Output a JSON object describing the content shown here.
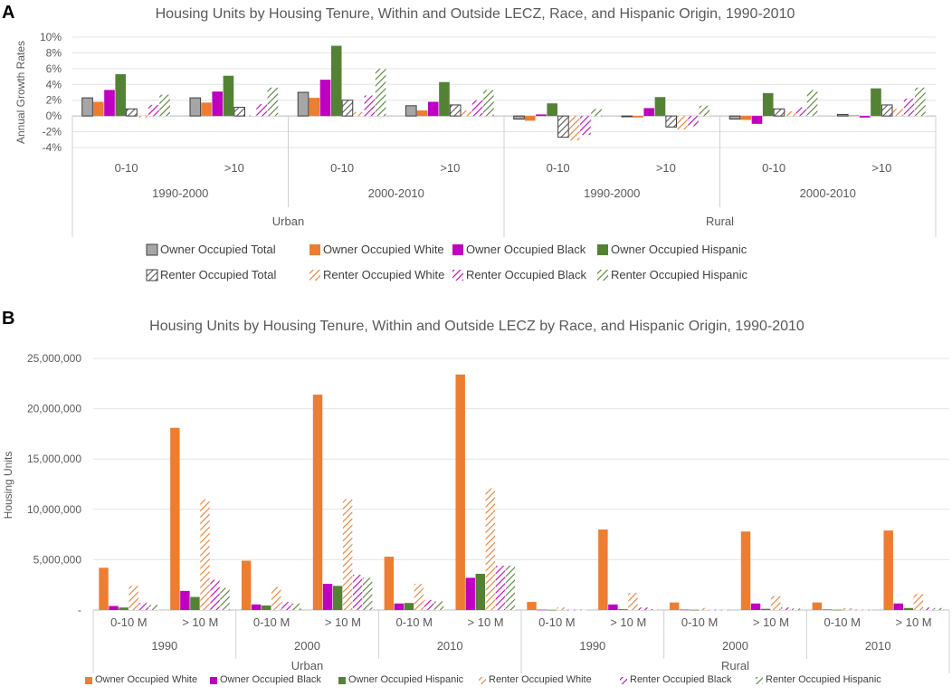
{
  "panels": [
    {
      "letter": "A"
    },
    {
      "letter": "B"
    }
  ],
  "colors": {
    "owner_total": "#a6a6a6",
    "owner_white": "#ed7d31",
    "owner_black": "#c000c0",
    "owner_hispanic": "#548235",
    "renter_total": "#595959"
  },
  "chart_data": [
    {
      "type": "bar",
      "title": "Housing Units by Housing Tenure, Within and Outside LECZ, Race, and Hispanic Origin, 1990-2010",
      "ylabel": "Annual Growth Rates",
      "xlabel": "",
      "ylim": [
        -4,
        10
      ],
      "yticks": [
        "10%",
        "8%",
        "6%",
        "4%",
        "2%",
        "0%",
        "-2%",
        "-4%"
      ],
      "ytick_values": [
        10,
        8,
        6,
        4,
        2,
        0,
        -2,
        -4
      ],
      "categories": [
        "0-10",
        ">10",
        "0-10",
        ">10",
        "0-10",
        ">10",
        "0-10",
        ">10"
      ],
      "periods": [
        {
          "label": "1990-2000",
          "span": 2
        },
        {
          "label": "2000-2010",
          "span": 2
        },
        {
          "label": "1990-2000",
          "span": 2
        },
        {
          "label": "2000-2010",
          "span": 2
        }
      ],
      "areas": [
        {
          "label": "Urban",
          "span": 4
        },
        {
          "label": "Rural",
          "span": 4
        }
      ],
      "series": [
        {
          "name": "Owner Occupied Total",
          "kind": "solid",
          "color": "#a6a6a6",
          "values": [
            2.3,
            2.3,
            3.0,
            1.3,
            -0.4,
            -0.1,
            -0.4,
            0.2
          ]
        },
        {
          "name": "Owner Occupied White",
          "kind": "solid",
          "color": "#ed7d31",
          "values": [
            1.8,
            1.7,
            2.3,
            0.7,
            -0.6,
            -0.2,
            -0.5,
            0.1
          ]
        },
        {
          "name": "Owner Occupied Black",
          "kind": "solid",
          "color": "#c000c0",
          "values": [
            3.3,
            3.1,
            4.6,
            1.8,
            0.2,
            1.0,
            -1.0,
            -0.2
          ]
        },
        {
          "name": "Owner Occupied Hispanic",
          "kind": "solid",
          "color": "#548235",
          "values": [
            5.3,
            5.1,
            8.9,
            4.3,
            1.6,
            2.4,
            2.9,
            3.5
          ]
        },
        {
          "name": "Renter Occupied Total",
          "kind": "hatch",
          "color": "#595959",
          "values": [
            0.9,
            1.1,
            2.0,
            1.4,
            -2.7,
            -1.4,
            0.9,
            1.4
          ]
        },
        {
          "name": "Renter Occupied White",
          "kind": "hatch",
          "color": "#ed7d31",
          "values": [
            -0.2,
            0.1,
            0.5,
            0.7,
            -3.1,
            -1.7,
            0.6,
            0.9
          ]
        },
        {
          "name": "Renter Occupied Black",
          "kind": "hatch",
          "color": "#c000c0",
          "values": [
            1.4,
            1.5,
            2.6,
            2.0,
            -2.4,
            -1.3,
            1.1,
            2.2
          ]
        },
        {
          "name": "Renter Occupied Hispanic",
          "kind": "hatch",
          "color": "#548235",
          "values": [
            2.7,
            3.6,
            6.0,
            3.3,
            0.9,
            1.3,
            3.3,
            3.6
          ]
        }
      ]
    },
    {
      "type": "bar",
      "title": "Housing Units by Housing Tenure, Within and Outside LECZ by Race, and Hispanic Origin, 1990-2010",
      "ylabel": "Housing Units",
      "xlabel": "",
      "ylim": [
        0,
        25000000
      ],
      "yticks": [
        "25,000,000",
        "20,000,000",
        "15,000,000",
        "10,000,000",
        "5,000,000",
        "-"
      ],
      "ytick_values": [
        25000000,
        20000000,
        15000000,
        10000000,
        5000000,
        0
      ],
      "categories": [
        "0-10 M",
        "> 10 M",
        "0-10 M",
        "> 10 M",
        "0-10 M",
        "> 10 M",
        "0-10 M",
        "> 10 M",
        "0-10 M",
        "> 10 M",
        "0-10 M",
        "> 10 M"
      ],
      "periods": [
        {
          "label": "1990",
          "span": 2
        },
        {
          "label": "2000",
          "span": 2
        },
        {
          "label": "2010",
          "span": 2
        },
        {
          "label": "1990",
          "span": 2
        },
        {
          "label": "2000",
          "span": 2
        },
        {
          "label": "2010",
          "span": 2
        }
      ],
      "areas": [
        {
          "label": "Urban",
          "span": 6
        },
        {
          "label": "Rural",
          "span": 6
        }
      ],
      "series": [
        {
          "name": "Owner Occupied White",
          "kind": "solid",
          "color": "#ed7d31",
          "values": [
            4200000,
            18100000,
            4900000,
            21400000,
            5300000,
            23400000,
            800000,
            8000000,
            750000,
            7800000,
            750000,
            7900000
          ]
        },
        {
          "name": "Owner Occupied Black",
          "kind": "solid",
          "color": "#c000c0",
          "values": [
            400000,
            1900000,
            550000,
            2600000,
            650000,
            3200000,
            30000,
            550000,
            40000,
            650000,
            50000,
            650000
          ]
        },
        {
          "name": "Owner Occupied Hispanic",
          "kind": "solid",
          "color": "#548235",
          "values": [
            250000,
            1300000,
            450000,
            2400000,
            700000,
            3600000,
            10000,
            80000,
            15000,
            120000,
            20000,
            200000
          ]
        },
        {
          "name": "Renter Occupied White",
          "kind": "hatch",
          "color": "#ed7d31",
          "values": [
            2400000,
            11000000,
            2300000,
            11000000,
            2600000,
            12100000,
            250000,
            1700000,
            200000,
            1400000,
            200000,
            1600000
          ]
        },
        {
          "name": "Renter Occupied Black",
          "kind": "hatch",
          "color": "#c000c0",
          "values": [
            700000,
            3000000,
            800000,
            3500000,
            1000000,
            4400000,
            20000,
            250000,
            30000,
            250000,
            30000,
            250000
          ]
        },
        {
          "name": "Renter Occupied Hispanic",
          "kind": "hatch",
          "color": "#548235",
          "values": [
            500000,
            2200000,
            650000,
            3200000,
            850000,
            4400000,
            10000,
            100000,
            20000,
            150000,
            20000,
            200000
          ]
        }
      ]
    }
  ]
}
